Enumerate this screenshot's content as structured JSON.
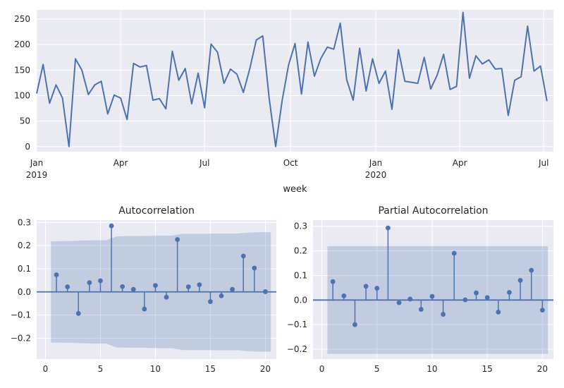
{
  "colors": {
    "background": "#EAEAF2",
    "grid": "#FFFFFF",
    "line": "#4C72B0",
    "band": "#4C72B0"
  },
  "chart_data": [
    {
      "type": "line",
      "title": "",
      "xlabel": "week",
      "ylabel": "",
      "ylim": [
        -10,
        268
      ],
      "xlim": [
        0,
        80
      ],
      "yticks": [
        0,
        50,
        100,
        150,
        200,
        250
      ],
      "xticks": [
        {
          "pos": 0,
          "label": "Jan",
          "sublabel": "2019"
        },
        {
          "pos": 13,
          "label": "Apr",
          "sublabel": ""
        },
        {
          "pos": 26,
          "label": "Jul",
          "sublabel": ""
        },
        {
          "pos": 39.3,
          "label": "Oct",
          "sublabel": ""
        },
        {
          "pos": 52.5,
          "label": "Jan",
          "sublabel": "2020"
        },
        {
          "pos": 65.5,
          "label": "Apr",
          "sublabel": ""
        },
        {
          "pos": 78.5,
          "label": "Jul",
          "sublabel": ""
        }
      ],
      "grid": true,
      "values": [
        104,
        161,
        85,
        121,
        95,
        0,
        172,
        150,
        102,
        121,
        128,
        64,
        101,
        95,
        53,
        163,
        156,
        159,
        91,
        94,
        74,
        187,
        130,
        153,
        84,
        144,
        76,
        201,
        185,
        124,
        152,
        142,
        106,
        153,
        209,
        217,
        94,
        0,
        90,
        160,
        202,
        103,
        205,
        138,
        173,
        195,
        191,
        242,
        131,
        91,
        193,
        109,
        172,
        124,
        148,
        73,
        190,
        128,
        126,
        124,
        175,
        113,
        140,
        181,
        112,
        118,
        263,
        134,
        178,
        162,
        170,
        152,
        153,
        61,
        130,
        137,
        236,
        148,
        158,
        89
      ]
    },
    {
      "type": "stem",
      "title": "Autocorrelation",
      "xlabel": "",
      "ylabel": "",
      "xlim": [
        -0.8,
        21
      ],
      "ylim": [
        -0.29,
        0.31
      ],
      "xticks": [
        0,
        5,
        10,
        15,
        20
      ],
      "yticks": [
        -0.2,
        -0.1,
        0.0,
        0.1,
        0.2,
        0.3
      ],
      "ytick_labels": [
        "−0.2",
        "−0.1",
        "0.0",
        "0.1",
        "0.2",
        "0.3"
      ],
      "lags": [
        1,
        2,
        3,
        4,
        5,
        6,
        7,
        8,
        9,
        10,
        11,
        12,
        13,
        14,
        15,
        16,
        17,
        18,
        19,
        20
      ],
      "values": [
        0.074,
        0.022,
        -0.093,
        0.04,
        0.048,
        0.285,
        0.023,
        0.011,
        -0.074,
        0.028,
        -0.023,
        0.226,
        0.022,
        0.031,
        -0.042,
        -0.017,
        0.011,
        0.155,
        0.103,
        0.001
      ],
      "confint": [
        0.219,
        0.219,
        0.22,
        0.222,
        0.223,
        0.223,
        0.24,
        0.241,
        0.241,
        0.242,
        0.243,
        0.243,
        0.251,
        0.251,
        0.251,
        0.252,
        0.252,
        0.252,
        0.256,
        0.258,
        0.258
      ]
    },
    {
      "type": "stem",
      "title": "Partial Autocorrelation",
      "xlabel": "",
      "ylabel": "",
      "xlim": [
        -0.8,
        21
      ],
      "ylim": [
        -0.24,
        0.325
      ],
      "xticks": [
        0,
        5,
        10,
        15,
        20
      ],
      "yticks": [
        -0.2,
        -0.1,
        0.0,
        0.1,
        0.2,
        0.3
      ],
      "ytick_labels": [
        "−0.2",
        "−0.1",
        "0.0",
        "0.1",
        "0.2",
        "0.3"
      ],
      "lags": [
        1,
        2,
        3,
        4,
        5,
        6,
        7,
        8,
        9,
        10,
        11,
        12,
        13,
        14,
        15,
        16,
        17,
        18,
        19,
        20
      ],
      "values": [
        0.075,
        0.017,
        -0.1,
        0.056,
        0.048,
        0.293,
        -0.011,
        0.004,
        -0.038,
        0.015,
        -0.058,
        0.19,
        0.001,
        0.029,
        0.01,
        -0.049,
        0.031,
        0.08,
        0.121,
        -0.041
      ],
      "confint": [
        0.219,
        0.219
      ]
    }
  ]
}
